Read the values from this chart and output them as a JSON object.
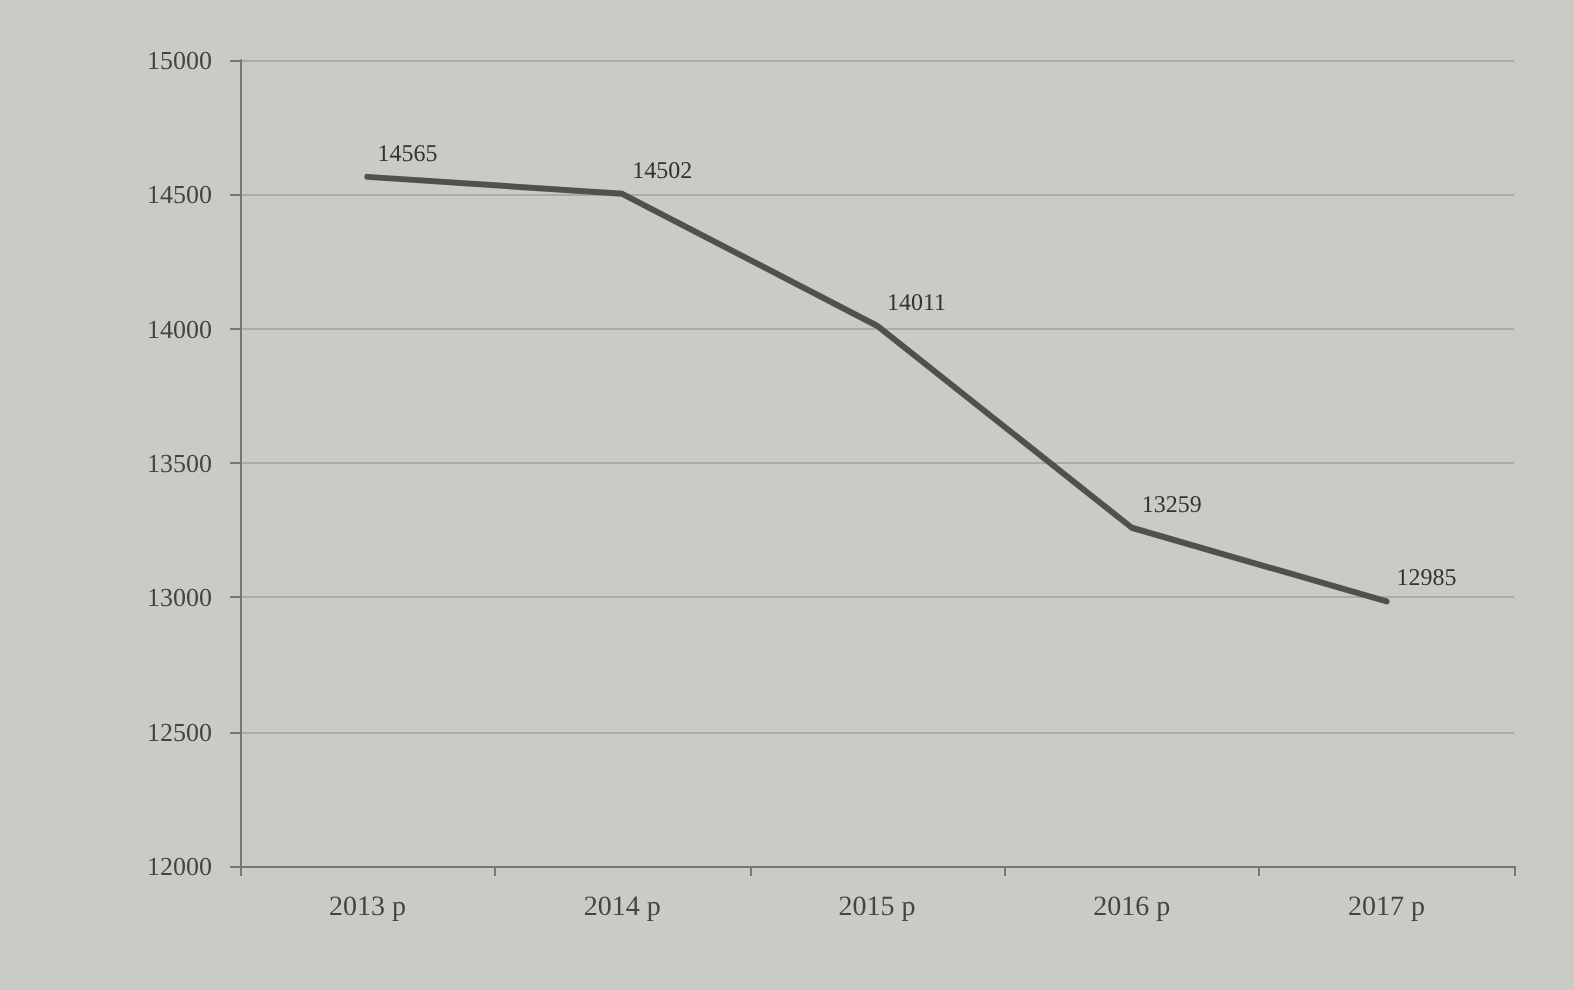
{
  "chart_data": {
    "type": "line",
    "categories": [
      "2013 p",
      "2014 p",
      "2015 p",
      "2016 p",
      "2017 p"
    ],
    "series": [
      {
        "color": "#505050",
        "values": [
          14565,
          14502,
          14011,
          13259,
          12985
        ]
      }
    ],
    "ylim": [
      12000,
      15000
    ],
    "yticks": [
      12000,
      12500,
      13000,
      13500,
      14000,
      14500,
      15000
    ],
    "grid": "y",
    "marker": "none",
    "line_style": "solid",
    "data_labels": true
  }
}
